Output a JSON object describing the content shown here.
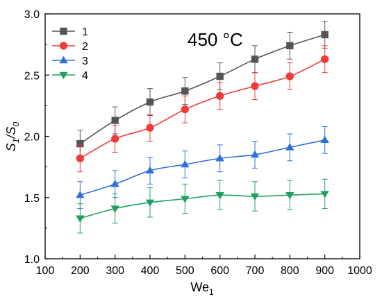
{
  "chart_data": {
    "type": "line",
    "annotation": "450 °C",
    "xlabel": "We",
    "xlabel_sub": "1",
    "ylabel_parts": [
      "S",
      "1",
      "/S",
      "0"
    ],
    "xlim": [
      100,
      1000
    ],
    "ylim": [
      1.0,
      3.0
    ],
    "xticks": [
      "100",
      "200",
      "300",
      "400",
      "500",
      "600",
      "700",
      "800",
      "900",
      "1000"
    ],
    "yticks": [
      "1.0",
      "1.5",
      "2.0",
      "2.5",
      "3.0"
    ],
    "grid": false,
    "legend_position": "top-left",
    "x": [
      200,
      300,
      400,
      500,
      600,
      700,
      800,
      900
    ],
    "series": [
      {
        "name": "1",
        "color": "#555555",
        "marker": "square",
        "values": [
          1.94,
          2.13,
          2.28,
          2.37,
          2.49,
          2.63,
          2.74,
          2.83
        ],
        "error": [
          0.11,
          0.11,
          0.11,
          0.11,
          0.11,
          0.11,
          0.11,
          0.11
        ]
      },
      {
        "name": "2",
        "color": "#f0393a",
        "marker": "circle",
        "values": [
          1.82,
          1.98,
          2.07,
          2.22,
          2.33,
          2.41,
          2.49,
          2.63
        ],
        "error": [
          0.11,
          0.11,
          0.11,
          0.11,
          0.11,
          0.11,
          0.11,
          0.11
        ]
      },
      {
        "name": "3",
        "color": "#2f6fd8",
        "marker": "triangle-up",
        "values": [
          1.52,
          1.61,
          1.72,
          1.77,
          1.82,
          1.85,
          1.91,
          1.97
        ],
        "error": [
          0.11,
          0.11,
          0.11,
          0.11,
          0.11,
          0.11,
          0.11,
          0.11
        ]
      },
      {
        "name": "4",
        "color": "#20a060",
        "marker": "triangle-down",
        "values": [
          1.33,
          1.41,
          1.46,
          1.49,
          1.52,
          1.51,
          1.52,
          1.53
        ],
        "error": [
          0.12,
          0.12,
          0.12,
          0.12,
          0.12,
          0.12,
          0.12,
          0.12
        ]
      }
    ]
  }
}
